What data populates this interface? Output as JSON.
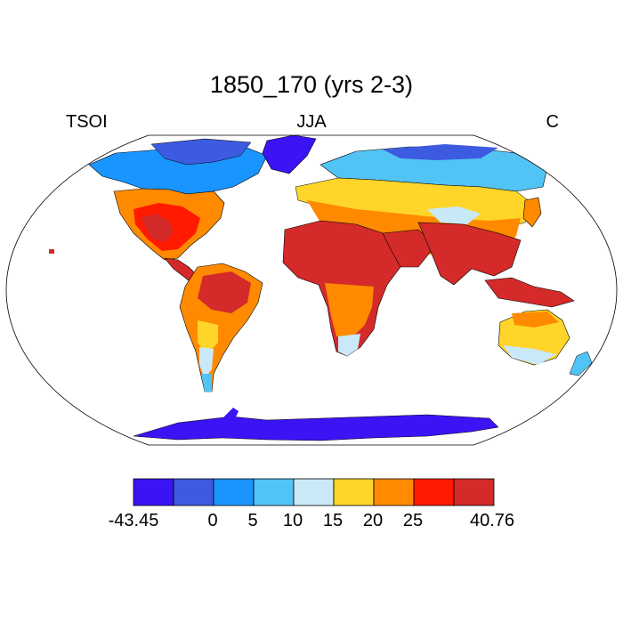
{
  "title": "1850_170 (yrs 2-3)",
  "left_label": "TSOI",
  "center_label": "JJA",
  "right_label": "C",
  "colorbar": {
    "min_label": "-43.45",
    "max_label": "40.76",
    "tick_labels": [
      "0",
      "5",
      "10",
      "15",
      "20",
      "25"
    ],
    "colors": [
      "#3b13f5",
      "#3c5be0",
      "#1a95ff",
      "#52c3f5",
      "#c9e8f8",
      "#ffd52a",
      "#ff8a00",
      "#ff1a00",
      "#d42a2a"
    ]
  },
  "map": {
    "projection": "robinson",
    "ocean_color": "#ffffff",
    "coast_color": "#000000"
  }
}
